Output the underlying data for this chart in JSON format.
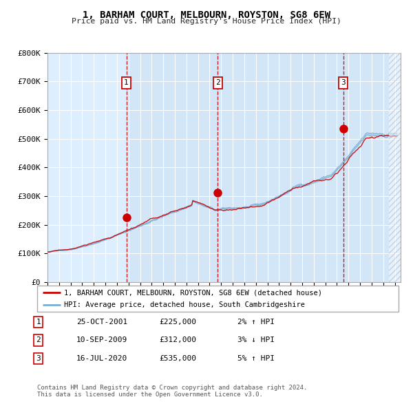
{
  "title": "1, BARHAM COURT, MELBOURN, ROYSTON, SG8 6EW",
  "subtitle": "Price paid vs. HM Land Registry's House Price Index (HPI)",
  "legend_line1": "1, BARHAM COURT, MELBOURN, ROYSTON, SG8 6EW (detached house)",
  "legend_line2": "HPI: Average price, detached house, South Cambridgeshire",
  "footnote1": "Contains HM Land Registry data © Crown copyright and database right 2024.",
  "footnote2": "This data is licensed under the Open Government Licence v3.0.",
  "sale_color": "#cc0000",
  "hpi_color": "#7bafd4",
  "background_color": "#ddeeff",
  "ylim": [
    0,
    800000
  ],
  "yticks": [
    0,
    100000,
    200000,
    300000,
    400000,
    500000,
    600000,
    700000,
    800000
  ],
  "ytick_labels": [
    "£0",
    "£100K",
    "£200K",
    "£300K",
    "£400K",
    "£500K",
    "£600K",
    "£700K",
    "£800K"
  ],
  "xlim_start": 1995.0,
  "xlim_end": 2025.5,
  "sale1_x": 2001.81,
  "sale1_y": 225000,
  "sale2_x": 2009.69,
  "sale2_y": 312000,
  "sale3_x": 2020.54,
  "sale3_y": 535000,
  "table_rows": [
    [
      "1",
      "25-OCT-2001",
      "£225,000",
      "2% ↑ HPI"
    ],
    [
      "2",
      "10-SEP-2009",
      "£312,000",
      "3% ↓ HPI"
    ],
    [
      "3",
      "16-JUL-2020",
      "£535,000",
      "5% ↑ HPI"
    ]
  ]
}
